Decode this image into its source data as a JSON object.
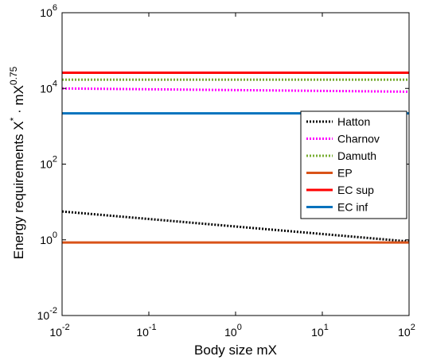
{
  "chart_data": {
    "type": "line",
    "xlabel": "Body size mX",
    "ylabel": "Energy requirements X",
    "ylabel_sup1": "*",
    "ylabel_mid": " · mX",
    "ylabel_sup2": "0.75",
    "x_scale": "log",
    "y_scale": "log",
    "xlim": [
      0.01,
      100
    ],
    "ylim": [
      0.01,
      1000000
    ],
    "grid": false,
    "legend_position": "right",
    "x_ticks": [
      {
        "base": "10",
        "exp": "-2",
        "value": 0.01
      },
      {
        "base": "10",
        "exp": "-1",
        "value": 0.1
      },
      {
        "base": "10",
        "exp": "0",
        "value": 1
      },
      {
        "base": "10",
        "exp": "1",
        "value": 10
      },
      {
        "base": "10",
        "exp": "2",
        "value": 100
      }
    ],
    "y_ticks": [
      {
        "base": "10",
        "exp": "-2",
        "value": 0.01
      },
      {
        "base": "10",
        "exp": "0",
        "value": 1
      },
      {
        "base": "10",
        "exp": "2",
        "value": 100
      },
      {
        "base": "10",
        "exp": "4",
        "value": 10000
      },
      {
        "base": "10",
        "exp": "6",
        "value": 1000000
      }
    ],
    "series": [
      {
        "name": "Hatton",
        "color": "#000000",
        "style": "dotted",
        "x": [
          0.01,
          100
        ],
        "y": [
          5.6,
          0.9
        ]
      },
      {
        "name": "Charnov",
        "color": "#ff00ff",
        "style": "dotted",
        "x": [
          0.01,
          100
        ],
        "y": [
          10000,
          8200
        ]
      },
      {
        "name": "Damuth",
        "color": "#77ac30",
        "style": "dotted",
        "x": [
          0.01,
          100
        ],
        "y": [
          17000,
          17000
        ]
      },
      {
        "name": "EP",
        "color": "#d95319",
        "style": "solid",
        "x": [
          0.01,
          100
        ],
        "y": [
          0.85,
          0.85
        ]
      },
      {
        "name": "EC sup",
        "color": "#ff0000",
        "style": "solid",
        "x": [
          0.01,
          100
        ],
        "y": [
          26000,
          26000
        ]
      },
      {
        "name": "EC inf",
        "color": "#0072bd",
        "style": "solid",
        "x": [
          0.01,
          100
        ],
        "y": [
          2200,
          2200
        ]
      }
    ]
  }
}
